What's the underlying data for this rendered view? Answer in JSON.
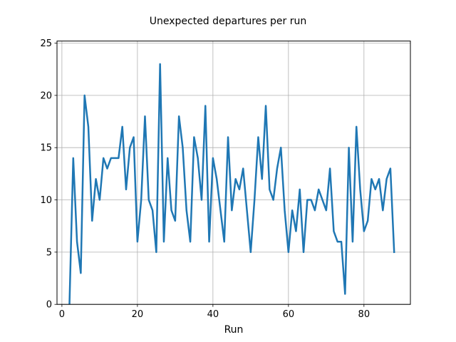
{
  "chart_data": {
    "type": "line",
    "title": "Unexpected departures per run",
    "xlabel": "Run",
    "ylabel": "",
    "xlim": [
      -1.3,
      92.3
    ],
    "ylim": [
      0,
      25.2
    ],
    "x_ticks": [
      0,
      20,
      40,
      60,
      80
    ],
    "y_ticks": [
      0,
      5,
      10,
      15,
      20,
      25
    ],
    "grid": true,
    "legend": "none",
    "series": [
      {
        "color": "#1f77b4",
        "x": [
          2,
          3,
          4,
          5,
          6,
          7,
          8,
          9,
          10,
          11,
          12,
          13,
          14,
          15,
          16,
          17,
          18,
          19,
          20,
          21,
          22,
          23,
          24,
          25,
          26,
          27,
          28,
          29,
          30,
          31,
          32,
          33,
          34,
          35,
          36,
          37,
          38,
          39,
          40,
          41,
          42,
          43,
          44,
          45,
          46,
          47,
          48,
          49,
          50,
          51,
          52,
          53,
          54,
          55,
          56,
          57,
          58,
          59,
          60,
          61,
          62,
          63,
          64,
          65,
          66,
          67,
          68,
          69,
          70,
          71,
          72,
          73,
          74,
          75,
          76,
          77,
          78,
          79,
          80,
          81,
          82,
          83,
          84,
          85,
          86,
          87,
          88
        ],
        "values": [
          0,
          14,
          6,
          3,
          20,
          17,
          8,
          12,
          10,
          14,
          13,
          14,
          14,
          14,
          17,
          11,
          15,
          16,
          6,
          10,
          18,
          10,
          9,
          5,
          23,
          6,
          14,
          9,
          8,
          18,
          15,
          9,
          6,
          16,
          14,
          10,
          19,
          6,
          14,
          12,
          9,
          6,
          16,
          9,
          12,
          11,
          13,
          9,
          5,
          10,
          16,
          12,
          19,
          11,
          10,
          13,
          15,
          9,
          5,
          9,
          7,
          11,
          5,
          10,
          10,
          9,
          11,
          10,
          9,
          13,
          7,
          6,
          6,
          1,
          15,
          6,
          17,
          11,
          7,
          8,
          12,
          11,
          12,
          9,
          12,
          13,
          5
        ]
      }
    ]
  }
}
